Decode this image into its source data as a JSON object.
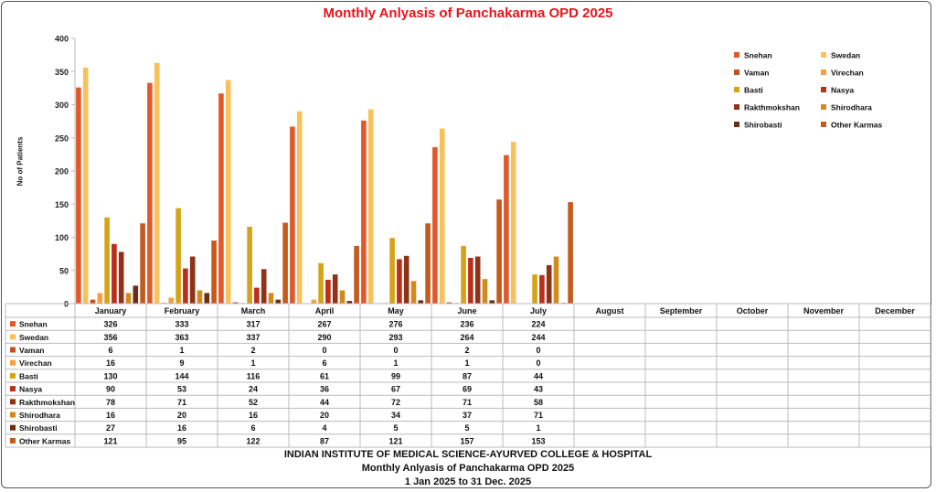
{
  "chart_data": {
    "type": "bar",
    "title": "Monthly Anlyasis of Panchakarma  OPD 2025",
    "ylabel": "No of Patients",
    "xlabel": "",
    "ylim": [
      0,
      400
    ],
    "yticks": [
      0,
      50,
      100,
      150,
      200,
      250,
      300,
      350,
      400
    ],
    "grid": false,
    "legend_position": "right",
    "categories": [
      "January",
      "February",
      "March",
      "April",
      "May",
      "June",
      "July",
      "August",
      "September",
      "October",
      "November",
      "December"
    ],
    "series": [
      {
        "name": "Snehan",
        "color": "#e0582c",
        "values": [
          326,
          333,
          317,
          267,
          276,
          236,
          224,
          null,
          null,
          null,
          null,
          null
        ]
      },
      {
        "name": "Swedan",
        "color": "#f8c15a",
        "values": [
          356,
          363,
          337,
          290,
          293,
          264,
          244,
          null,
          null,
          null,
          null,
          null
        ]
      },
      {
        "name": "Vaman",
        "color": "#c0502a",
        "values": [
          6,
          1,
          2,
          0,
          0,
          2,
          0,
          null,
          null,
          null,
          null,
          null
        ]
      },
      {
        "name": "Virechan",
        "color": "#f5a040",
        "values": [
          16,
          9,
          1,
          6,
          1,
          1,
          0,
          null,
          null,
          null,
          null,
          null
        ]
      },
      {
        "name": "Basti",
        "color": "#d4a317",
        "values": [
          130,
          144,
          116,
          61,
          99,
          87,
          44,
          null,
          null,
          null,
          null,
          null
        ]
      },
      {
        "name": "Nasya",
        "color": "#b82f1a",
        "values": [
          90,
          53,
          24,
          36,
          67,
          69,
          43,
          null,
          null,
          null,
          null,
          null
        ]
      },
      {
        "name": "Rakthmokshan",
        "color": "#8f3318",
        "values": [
          78,
          71,
          52,
          44,
          72,
          71,
          58,
          null,
          null,
          null,
          null,
          null
        ]
      },
      {
        "name": "Shirodhara",
        "color": "#d18a1e",
        "values": [
          16,
          20,
          16,
          20,
          34,
          37,
          71,
          null,
          null,
          null,
          null,
          null
        ]
      },
      {
        "name": "Shirobasti",
        "color": "#6a2d16",
        "values": [
          27,
          16,
          6,
          4,
          5,
          5,
          1,
          null,
          null,
          null,
          null,
          null
        ]
      },
      {
        "name": "Other Karmas",
        "color": "#c45a1c",
        "values": [
          121,
          95,
          122,
          87,
          121,
          157,
          153,
          null,
          null,
          null,
          null,
          null
        ]
      }
    ],
    "table_labels": {
      "Snehan": [
        "326",
        "333",
        "317",
        "267",
        "276",
        "236",
        "224",
        "",
        "",
        "",
        "",
        ""
      ],
      "Swedan": [
        "356",
        "363",
        "337",
        "290",
        "293",
        "264",
        "244",
        "",
        "",
        "",
        "",
        ""
      ],
      "Vaman": [
        "6",
        "1",
        "2",
        "0",
        "0",
        "2",
        "0",
        "",
        "",
        "",
        "",
        ""
      ],
      "Virechan": [
        "16",
        "9",
        "1",
        "6",
        "1",
        "1",
        "0",
        "",
        "",
        "",
        "",
        ""
      ],
      "Basti": [
        "130",
        "144",
        "116",
        "61",
        "99",
        "87",
        "44",
        "",
        "",
        "",
        "",
        ""
      ],
      "Nasya": [
        "90",
        "53",
        "24",
        "36",
        "67",
        "69",
        "43",
        "",
        "",
        "",
        "",
        ""
      ],
      "Rakthmokshan": [
        "78",
        "71",
        "52",
        "44",
        "72",
        "71",
        "58",
        "",
        "",
        "",
        "",
        ""
      ],
      "Shirodhara": [
        "16",
        "20",
        "16",
        "20",
        "34",
        "37",
        "71",
        "",
        "",
        "",
        "",
        ""
      ],
      "Shirobasti": [
        "27",
        "16",
        "6",
        "4",
        "5",
        "5",
        "1",
        "",
        "",
        "",
        "",
        ""
      ],
      "Other Karmas": [
        "121",
        "95",
        "122",
        "87",
        "121",
        "157",
        "153",
        "",
        "",
        "",
        "",
        ""
      ]
    }
  },
  "footer": {
    "line1": "INDIAN INSTITUTE OF MEDICAL SCIENCE-AYURVED COLLEGE & HOSPITAL",
    "line2": "Monthly Anlyasis of Panchakarma  OPD 2025",
    "line3": "1 Jan 2025 to 31 Dec. 2025"
  }
}
